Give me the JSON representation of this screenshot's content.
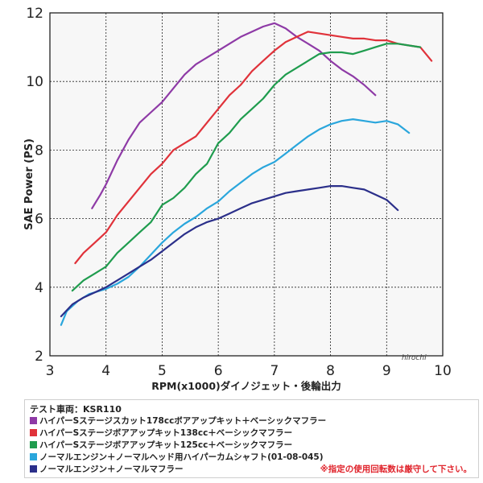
{
  "chart_data": {
    "type": "line",
    "xlabel": "RPM(x1000)ダイノジェット・後輪出力",
    "ylabel": "SAE Power (PS)",
    "xlim": [
      3,
      10
    ],
    "ylim": [
      2,
      12
    ],
    "x_ticks": [
      "3",
      "4",
      "5",
      "6",
      "7",
      "8",
      "9",
      "10"
    ],
    "y_ticks": [
      "2",
      "4",
      "6",
      "8",
      "10",
      "12"
    ],
    "grid": true,
    "series": [
      {
        "name": "ハイパーSステージスカット178ccボアアップキット＋ベーシックマフラー",
        "color": "#8e3aa6",
        "x": [
          3.75,
          3.9,
          4.0,
          4.2,
          4.4,
          4.6,
          4.8,
          5.0,
          5.2,
          5.4,
          5.6,
          5.8,
          6.0,
          6.2,
          6.4,
          6.6,
          6.8,
          7.0,
          7.2,
          7.4,
          7.6,
          7.8,
          8.0,
          8.2,
          8.4,
          8.6,
          8.8
        ],
        "y": [
          6.3,
          6.7,
          7.0,
          7.7,
          8.3,
          8.8,
          9.1,
          9.4,
          9.8,
          10.2,
          10.5,
          10.7,
          10.9,
          11.1,
          11.3,
          11.45,
          11.6,
          11.7,
          11.55,
          11.3,
          11.1,
          10.9,
          10.6,
          10.35,
          10.15,
          9.9,
          9.6
        ]
      },
      {
        "name": "ハイパーSステージボアアップキット138cc＋ベーシックマフラー",
        "color": "#e0323a",
        "x": [
          3.45,
          3.6,
          3.8,
          4.0,
          4.2,
          4.4,
          4.6,
          4.8,
          5.0,
          5.2,
          5.4,
          5.6,
          5.8,
          6.0,
          6.2,
          6.4,
          6.6,
          6.8,
          7.0,
          7.2,
          7.4,
          7.6,
          7.8,
          8.0,
          8.2,
          8.4,
          8.6,
          8.8,
          9.0,
          9.2,
          9.4,
          9.6,
          9.8
        ],
        "y": [
          4.7,
          5.0,
          5.3,
          5.6,
          6.1,
          6.5,
          6.9,
          7.3,
          7.6,
          8.0,
          8.2,
          8.4,
          8.8,
          9.2,
          9.6,
          9.9,
          10.3,
          10.6,
          10.9,
          11.15,
          11.3,
          11.45,
          11.4,
          11.35,
          11.3,
          11.25,
          11.25,
          11.2,
          11.2,
          11.1,
          11.05,
          11.0,
          10.6
        ]
      },
      {
        "name": "ハイパーSステージボアアップキット125cc＋ベーシックマフラー",
        "color": "#1f9c4e",
        "x": [
          3.4,
          3.6,
          3.8,
          4.0,
          4.2,
          4.4,
          4.6,
          4.8,
          5.0,
          5.2,
          5.4,
          5.6,
          5.8,
          6.0,
          6.2,
          6.4,
          6.6,
          6.8,
          7.0,
          7.2,
          7.4,
          7.6,
          7.8,
          8.0,
          8.2,
          8.4,
          8.6,
          8.8,
          9.0,
          9.2,
          9.4,
          9.6
        ],
        "y": [
          3.9,
          4.2,
          4.4,
          4.6,
          5.0,
          5.3,
          5.6,
          5.9,
          6.4,
          6.6,
          6.9,
          7.3,
          7.6,
          8.2,
          8.5,
          8.9,
          9.2,
          9.5,
          9.9,
          10.2,
          10.4,
          10.6,
          10.8,
          10.85,
          10.85,
          10.8,
          10.9,
          11.0,
          11.1,
          11.1,
          11.05,
          11.0
        ]
      },
      {
        "name": "ノーマルエンジン＋ノーマルヘッド用ハイパーカムシャフト(01-08-045)",
        "color": "#2aa6dc",
        "x": [
          3.2,
          3.3,
          3.5,
          3.7,
          4.0,
          4.2,
          4.4,
          4.6,
          4.8,
          5.0,
          5.2,
          5.4,
          5.6,
          5.8,
          6.0,
          6.2,
          6.4,
          6.6,
          6.8,
          7.0,
          7.2,
          7.4,
          7.6,
          7.8,
          8.0,
          8.2,
          8.4,
          8.6,
          8.8,
          9.0,
          9.2,
          9.4
        ],
        "y": [
          2.9,
          3.3,
          3.6,
          3.8,
          3.95,
          4.1,
          4.3,
          4.6,
          4.95,
          5.3,
          5.6,
          5.85,
          6.05,
          6.3,
          6.5,
          6.8,
          7.05,
          7.3,
          7.5,
          7.65,
          7.9,
          8.15,
          8.4,
          8.6,
          8.75,
          8.85,
          8.9,
          8.85,
          8.8,
          8.85,
          8.75,
          8.5
        ]
      },
      {
        "name": "ノーマルエンジン＋ノーマルマフラー",
        "color": "#2b2f8a",
        "x": [
          3.2,
          3.4,
          3.6,
          3.8,
          4.0,
          4.2,
          4.4,
          4.6,
          4.8,
          5.0,
          5.2,
          5.4,
          5.6,
          5.8,
          6.0,
          6.2,
          6.4,
          6.6,
          6.8,
          7.0,
          7.2,
          7.4,
          7.6,
          7.8,
          8.0,
          8.2,
          8.4,
          8.6,
          8.8,
          9.0,
          9.2
        ],
        "y": [
          3.15,
          3.5,
          3.7,
          3.85,
          4.0,
          4.2,
          4.4,
          4.6,
          4.8,
          5.05,
          5.3,
          5.55,
          5.75,
          5.9,
          6.0,
          6.15,
          6.3,
          6.45,
          6.55,
          6.65,
          6.75,
          6.8,
          6.85,
          6.9,
          6.95,
          6.95,
          6.9,
          6.85,
          6.7,
          6.55,
          6.25
        ]
      }
    ]
  },
  "watermark": "hirochi",
  "legend": {
    "header": "テスト車両：KSR110",
    "note": "※指定の使用回転数は厳守して下さい。"
  }
}
